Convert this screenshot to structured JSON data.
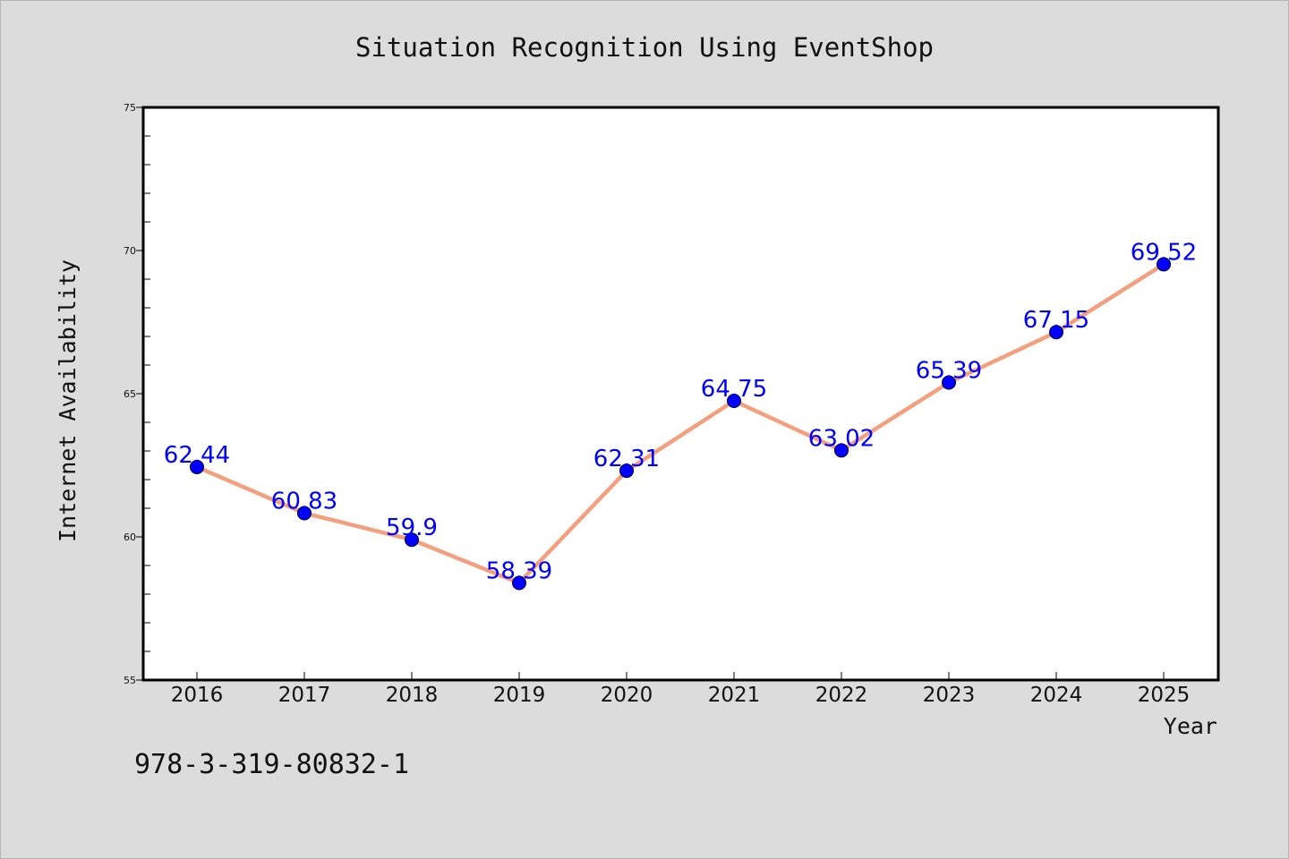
{
  "isbn": "978-3-319-80832-1",
  "colors": {
    "background": "#dcdcdc",
    "plot_background": "#ffffff",
    "line": "#f4a07e",
    "marker": "#0000ff",
    "data_label": "#0000ff"
  },
  "chart_data": {
    "type": "line",
    "title": "Situation Recognition Using EventShop",
    "xlabel": "Year",
    "ylabel": "Internet Availability",
    "categories": [
      "2016",
      "2017",
      "2018",
      "2019",
      "2020",
      "2021",
      "2022",
      "2023",
      "2024",
      "2025"
    ],
    "series": [
      {
        "values": [
          62.44,
          60.83,
          59.9,
          58.39,
          62.31,
          64.75,
          63.02,
          65.39,
          67.15,
          69.52
        ]
      }
    ],
    "data_labels": [
      "62.44",
      "60.83",
      "59.9",
      "58.39",
      "62.31",
      "64.75",
      "63.02",
      "65.39",
      "67.15",
      "69.52"
    ],
    "ylim": [
      55,
      75
    ],
    "yticks": [
      "55",
      "60",
      "65",
      "70",
      "75"
    ],
    "grid": false,
    "legend": "none"
  }
}
